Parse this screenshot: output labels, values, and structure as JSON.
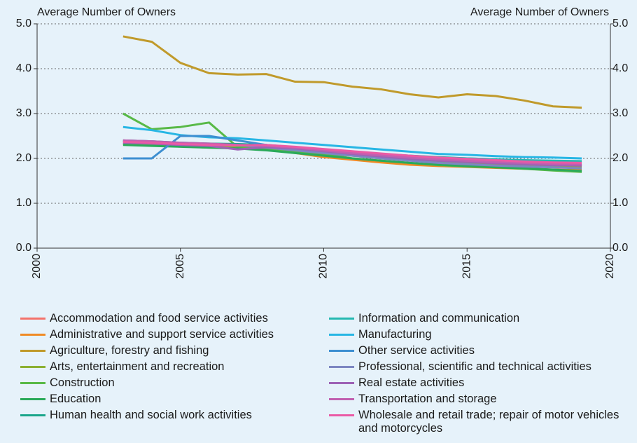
{
  "chart_data": {
    "type": "line",
    "y_label": "Average Number of Owners",
    "y2_label": "Average Number of Owners",
    "x": [
      2003,
      2004,
      2005,
      2006,
      2007,
      2008,
      2009,
      2010,
      2011,
      2012,
      2013,
      2014,
      2015,
      2016,
      2017,
      2018,
      2019
    ],
    "xlim": [
      2000,
      2020
    ],
    "xticks": [
      2000,
      2005,
      2010,
      2015,
      2020
    ],
    "ylim": [
      0,
      5
    ],
    "yticks": [
      {
        "value": 0,
        "label": "0.0"
      },
      {
        "value": 1,
        "label": "1.0"
      },
      {
        "value": 2,
        "label": "2.0"
      },
      {
        "value": 3,
        "label": "3.0"
      },
      {
        "value": 4,
        "label": "4.0"
      },
      {
        "value": 5,
        "label": "5.0"
      }
    ],
    "y2lim": [
      0,
      5
    ],
    "y2ticks": [
      {
        "value": 0,
        "label": "0.0"
      },
      {
        "value": 1,
        "label": "1.0"
      },
      {
        "value": 2,
        "label": "2.0"
      },
      {
        "value": 3,
        "label": "3.0"
      },
      {
        "value": 4,
        "label": "4.0"
      },
      {
        "value": 5,
        "label": "5.0"
      }
    ],
    "grid": true,
    "series": [
      {
        "name": "Accommodation and food service activities",
        "color": "#f4726a",
        "values": [
          2.38,
          2.36,
          2.32,
          2.3,
          2.28,
          2.26,
          2.2,
          2.14,
          2.08,
          2.02,
          1.98,
          1.95,
          1.93,
          1.9,
          1.88,
          1.86,
          1.85
        ]
      },
      {
        "name": "Administrative and support service activities",
        "color": "#f08a24",
        "values": [
          2.33,
          2.3,
          2.27,
          2.24,
          2.24,
          2.2,
          2.12,
          2.03,
          1.97,
          1.91,
          1.86,
          1.83,
          1.81,
          1.79,
          1.77,
          1.75,
          1.74
        ]
      },
      {
        "name": "Agriculture, forestry and fishing",
        "color": "#c09a2b",
        "values": [
          4.72,
          4.6,
          4.13,
          3.9,
          3.87,
          3.88,
          3.71,
          3.7,
          3.6,
          3.54,
          3.43,
          3.36,
          3.43,
          3.39,
          3.29,
          3.16,
          3.13
        ]
      },
      {
        "name": "Arts, entertainment and recreation",
        "color": "#8cb032",
        "values": [
          2.32,
          2.3,
          2.28,
          2.26,
          2.25,
          2.22,
          2.17,
          2.12,
          2.06,
          2.0,
          1.96,
          1.93,
          1.9,
          1.87,
          1.85,
          1.83,
          1.82
        ]
      },
      {
        "name": "Construction",
        "color": "#58b947",
        "values": [
          3.0,
          2.65,
          2.7,
          2.8,
          2.25,
          2.2,
          2.15,
          2.1,
          2.0,
          1.95,
          1.9,
          1.85,
          1.82,
          1.8,
          1.77,
          1.73,
          1.7
        ]
      },
      {
        "name": "Education",
        "color": "#2aaa5a",
        "values": [
          2.3,
          2.28,
          2.26,
          2.24,
          2.22,
          2.18,
          2.12,
          2.06,
          2.0,
          1.95,
          1.9,
          1.86,
          1.83,
          1.8,
          1.78,
          1.75,
          1.72
        ]
      },
      {
        "name": "Human health and social work activities",
        "color": "#19a58a",
        "values": [
          2.4,
          2.38,
          2.35,
          2.33,
          2.32,
          2.3,
          2.25,
          2.2,
          2.15,
          2.1,
          2.06,
          2.03,
          2.0,
          1.98,
          1.95,
          1.93,
          1.92
        ]
      },
      {
        "name": "Information and communication",
        "color": "#24b8b0",
        "values": [
          2.38,
          2.36,
          2.34,
          2.32,
          2.3,
          2.28,
          2.24,
          2.19,
          2.14,
          2.09,
          2.05,
          2.02,
          2.0,
          1.98,
          1.96,
          1.95,
          1.94
        ]
      },
      {
        "name": "Manufacturing",
        "color": "#27b6e4",
        "values": [
          2.7,
          2.63,
          2.52,
          2.47,
          2.45,
          2.4,
          2.35,
          2.3,
          2.25,
          2.2,
          2.15,
          2.1,
          2.08,
          2.05,
          2.03,
          2.02,
          2.0
        ]
      },
      {
        "name": "Other service activities",
        "color": "#3d8fd1",
        "values": [
          2.0,
          2.0,
          2.5,
          2.5,
          2.4,
          2.3,
          2.2,
          2.15,
          2.1,
          2.05,
          2.0,
          1.95,
          1.93,
          1.9,
          1.88,
          1.86,
          1.85
        ]
      },
      {
        "name": "Professional, scientific and technical activities",
        "color": "#7d87c2",
        "values": [
          2.4,
          2.38,
          2.34,
          2.32,
          2.3,
          2.24,
          2.18,
          2.12,
          2.06,
          2.0,
          1.95,
          1.9,
          1.87,
          1.84,
          1.82,
          1.8,
          1.78
        ]
      },
      {
        "name": "Real estate activities",
        "color": "#9d62b5",
        "values": [
          2.35,
          2.33,
          2.3,
          2.28,
          2.2,
          2.25,
          2.22,
          2.16,
          2.1,
          2.04,
          1.99,
          1.95,
          1.92,
          1.89,
          1.87,
          1.85,
          1.84
        ]
      },
      {
        "name": "Transportation and storage",
        "color": "#c160b0",
        "values": [
          2.4,
          2.38,
          2.35,
          2.33,
          2.3,
          2.28,
          2.24,
          2.18,
          2.12,
          2.07,
          2.02,
          1.98,
          1.95,
          1.92,
          1.9,
          1.88,
          1.87
        ]
      },
      {
        "name": "Wholesale and retail trade; repair of motor vehicles and motorcycles",
        "color": "#ea5aa5",
        "values": [
          2.37,
          2.35,
          2.32,
          2.3,
          2.29,
          2.3,
          2.26,
          2.21,
          2.16,
          2.11,
          2.06,
          2.02,
          1.99,
          1.96,
          1.93,
          1.91,
          1.9
        ]
      }
    ]
  }
}
